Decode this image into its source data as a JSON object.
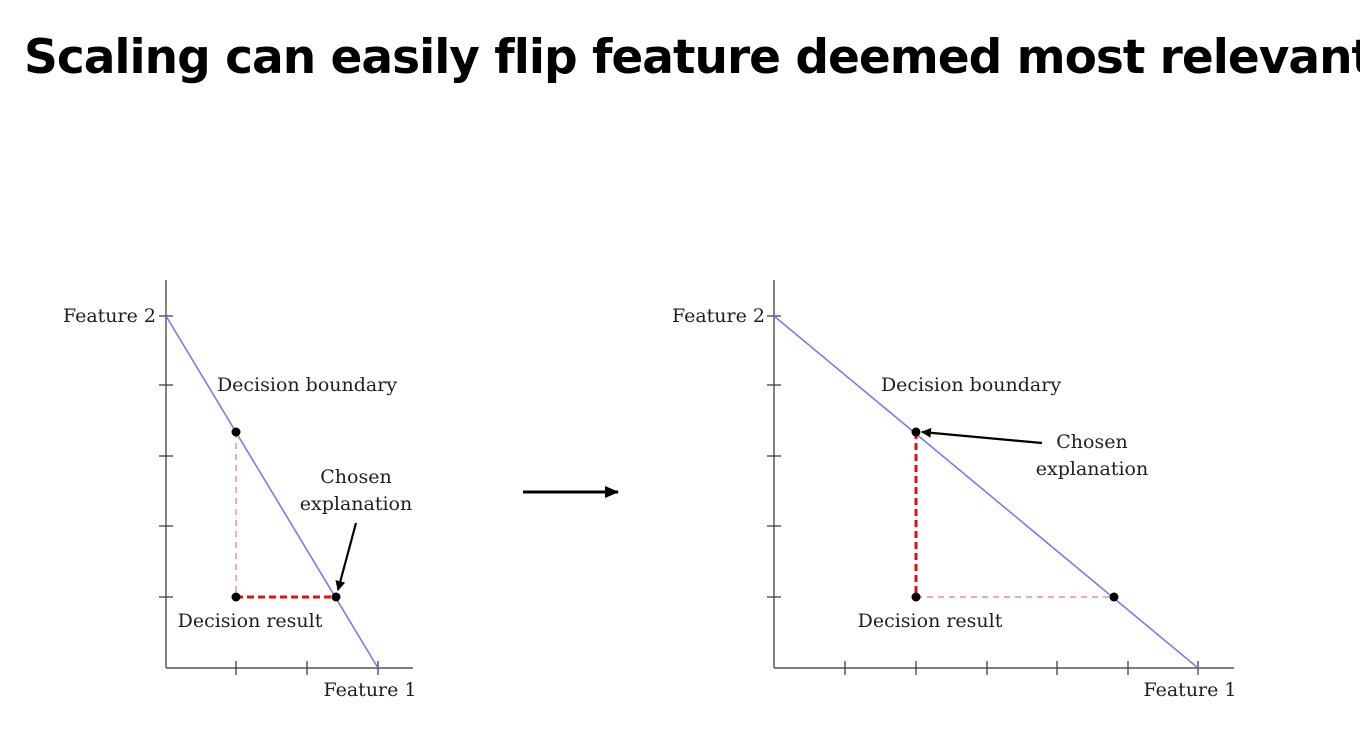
{
  "slide": {
    "title": "Scaling can easily flip feature deemed most relevant"
  },
  "left_panel": {
    "y_axis_label": "Feature 2",
    "x_axis_label": "Feature 1",
    "boundary_label": "Decision boundary",
    "result_label": "Decision result",
    "explanation_label_line1": "Chosen",
    "explanation_label_line2": "explanation"
  },
  "right_panel": {
    "y_axis_label": "Feature 2",
    "x_axis_label": "Feature 1",
    "boundary_label": "Decision boundary",
    "result_label": "Decision result",
    "explanation_label_line1": "Chosen",
    "explanation_label_line2": "explanation"
  },
  "colors": {
    "boundary": "#7b7bf0",
    "dashed_highlight": "#e01010",
    "dashed_light": "#f08c8c",
    "ink": "#000000",
    "axis": "#333333"
  }
}
